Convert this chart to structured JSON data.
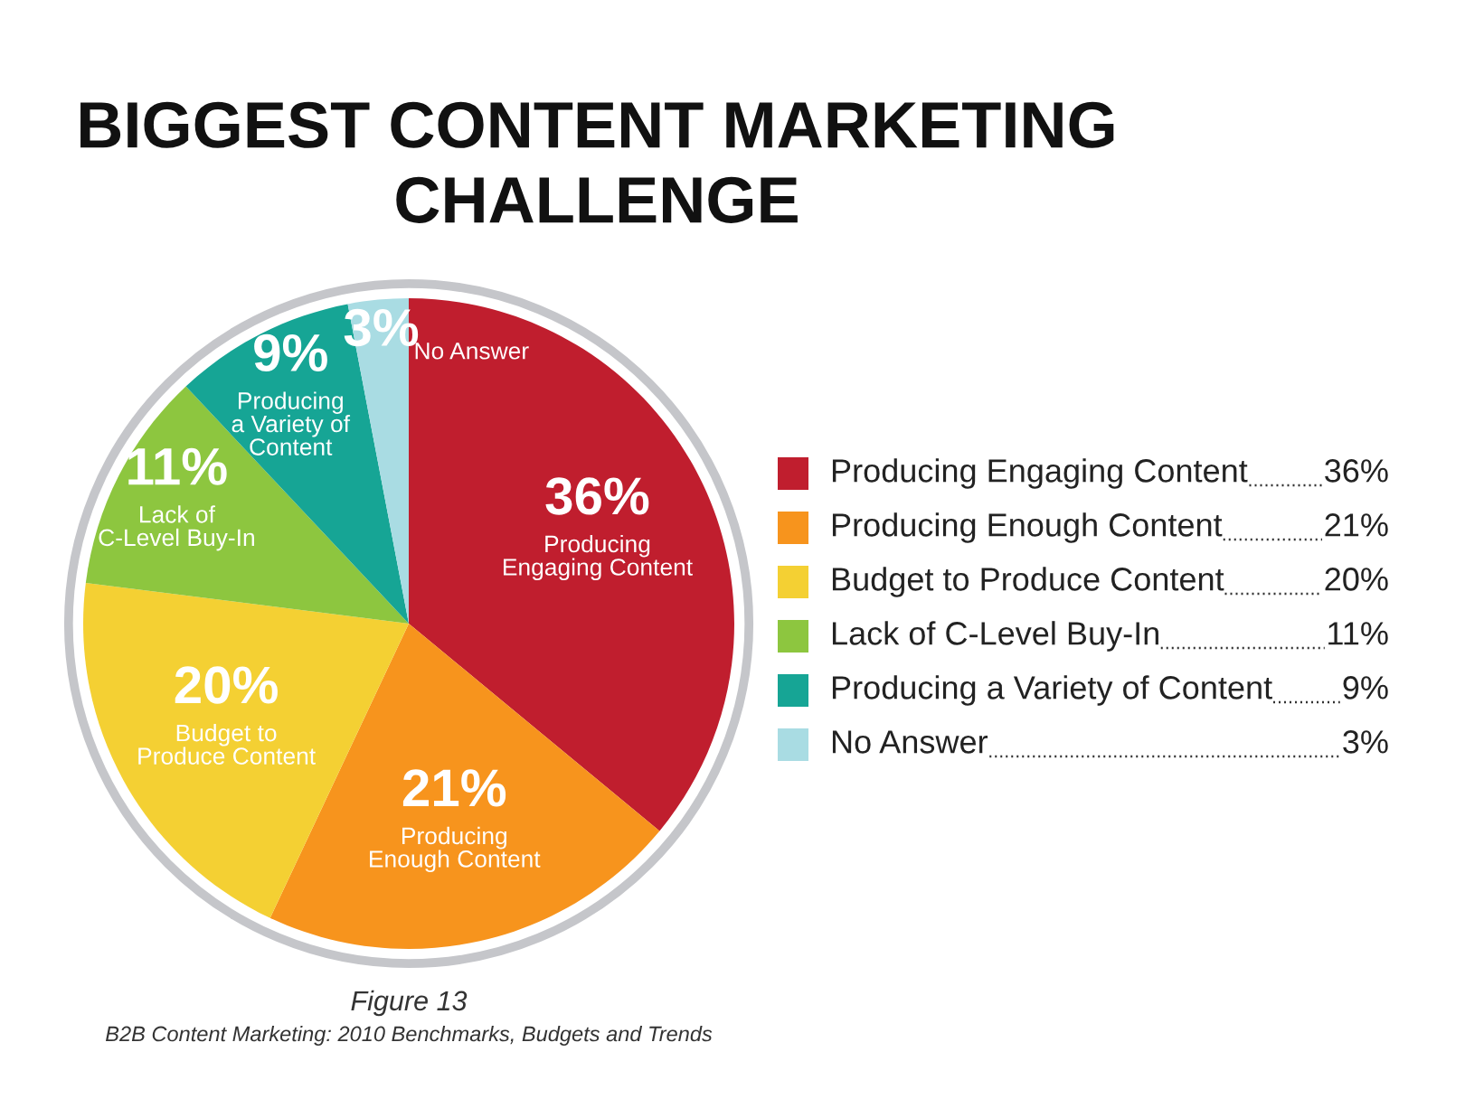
{
  "chart_data": {
    "type": "pie",
    "title": "BIGGEST CONTENT MARKETING\nCHALLENGE",
    "categories": [
      "Producing Engaging Content",
      "Producing Enough Content",
      "Budget to Produce Content",
      "Lack of C-Level Buy-In",
      "Producing a Variety of Content",
      "No Answer"
    ],
    "values": [
      36,
      21,
      20,
      11,
      9,
      3
    ],
    "value_labels": [
      "36%",
      "21%",
      "20%",
      "11%",
      "9%",
      "3%"
    ],
    "colors": [
      "#c01e2e",
      "#f7941d",
      "#f4d033",
      "#8dc63f",
      "#16a595",
      "#a9dce3"
    ],
    "legend": "right",
    "annotations": [
      "Figure 13",
      "B2B Content Marketing: 2010 Benchmarks, Budgets and Trends"
    ]
  }
}
